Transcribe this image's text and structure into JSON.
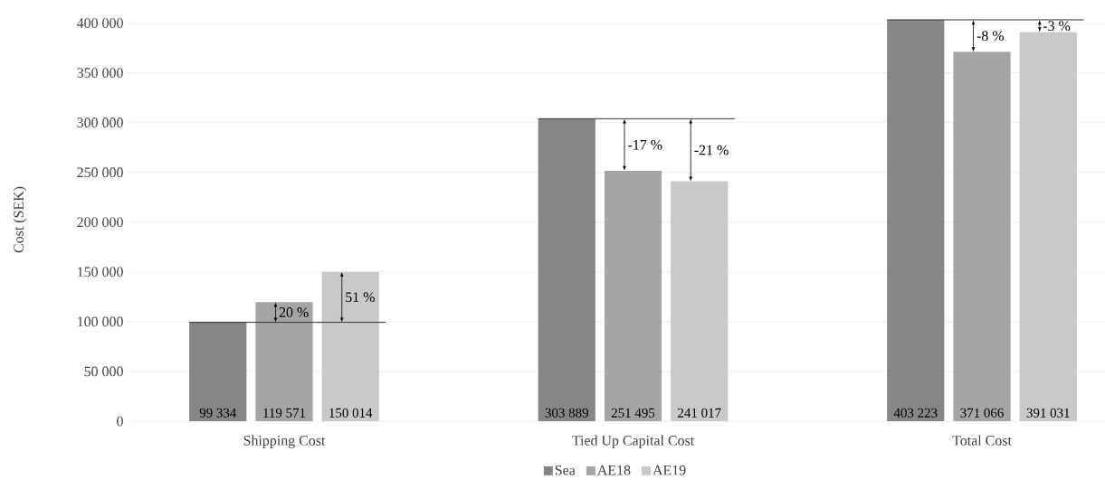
{
  "chart_data": {
    "type": "bar",
    "ylabel": "Cost (SEK)",
    "categories": [
      "Shipping Cost",
      "Tied Up Capital Cost",
      "Total Cost"
    ],
    "series": [
      {
        "name": "Sea",
        "color": "#868686",
        "values": [
          99334,
          303889,
          403223
        ],
        "value_labels": [
          "99 334",
          "303 889",
          "403 223"
        ]
      },
      {
        "name": "AE18",
        "color": "#a5a5a5",
        "values": [
          119571,
          251495,
          371066
        ],
        "value_labels": [
          "119 571",
          "251 495",
          "371 066"
        ]
      },
      {
        "name": "AE19",
        "color": "#c9c9c9",
        "values": [
          150014,
          241017,
          391031
        ],
        "value_labels": [
          "150 014",
          "241 017",
          "391 031"
        ]
      }
    ],
    "ylim": [
      0,
      405000
    ],
    "yticks": [
      0,
      {
        "value": 50000,
        "label": "50 000"
      },
      {
        "value": 100000,
        "label": "100 000"
      },
      {
        "value": 150000,
        "label": "150 000"
      },
      {
        "value": 200000,
        "label": "200 000"
      },
      {
        "value": 250000,
        "label": "250 000"
      },
      {
        "value": 300000,
        "label": "300 000"
      },
      {
        "value": 350000,
        "label": "350 000"
      },
      {
        "value": 400000,
        "label": "400 000"
      }
    ],
    "grid": "y",
    "legend": "bottom",
    "ref_lines": [
      {
        "axis": "y",
        "value": 99334,
        "color": "#333333"
      },
      {
        "axis": "y",
        "value": 303889,
        "color": "#333333"
      },
      {
        "axis": "y",
        "value": 403223,
        "color": "#333333"
      }
    ],
    "annotations": [
      "20 %",
      "51 %",
      "-17 %",
      "-21 %",
      "-8 %",
      "-3 %"
    ]
  }
}
